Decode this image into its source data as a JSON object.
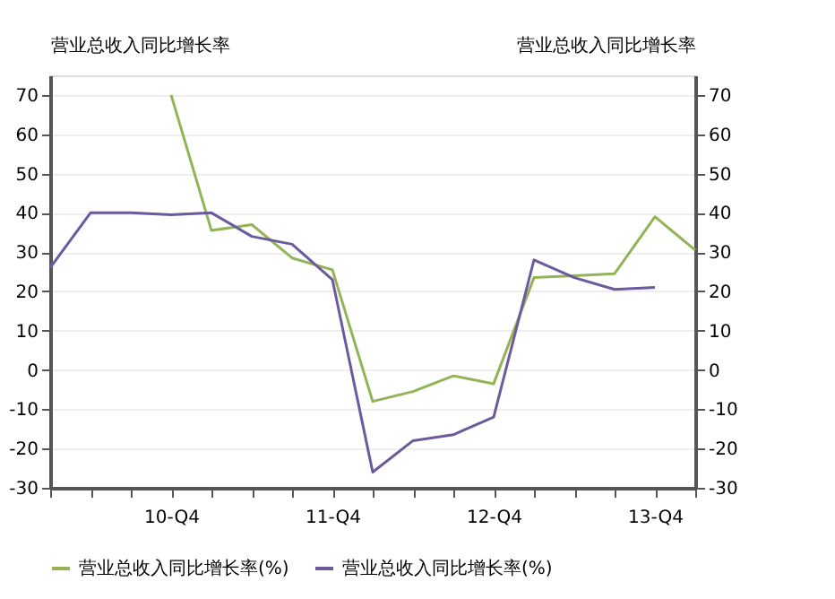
{
  "chart_data": {
    "type": "line",
    "ylabel": "营业总收入同比增长率",
    "y2label": "营业总收入同比增长率",
    "categories": [
      null,
      null,
      null,
      "10-Q4",
      null,
      null,
      null,
      "11-Q4",
      null,
      null,
      null,
      "12-Q4",
      null,
      null,
      null,
      "13-Q4",
      null
    ],
    "series": [
      {
        "name": "营业总收入同比增长率(%)",
        "color": "#92b356",
        "values": [
          null,
          null,
          null,
          70,
          35.5,
          37,
          28.5,
          25.5,
          -8,
          -5.5,
          -1.5,
          -3.5,
          23.5,
          24,
          24.5,
          39,
          30.5
        ]
      },
      {
        "name": "营业总收入同比增长率(%)",
        "color": "#6b5a9c",
        "values": [
          26,
          40,
          40,
          39.5,
          40,
          34,
          32,
          23,
          -26,
          -18,
          -16.5,
          -12,
          28,
          23.5,
          20.5,
          21,
          null
        ]
      }
    ],
    "ylim": [
      -30,
      75
    ],
    "yticks": [
      -30,
      -20,
      -10,
      0,
      10,
      20,
      30,
      40,
      50,
      60,
      70
    ],
    "y2lim": [
      -30,
      75
    ],
    "y2ticks": [
      -30,
      -20,
      -10,
      0,
      10,
      20,
      30,
      40,
      50,
      60,
      70
    ],
    "grid": "y",
    "legend": "bottom",
    "marker": "none",
    "line_style": "solid"
  }
}
